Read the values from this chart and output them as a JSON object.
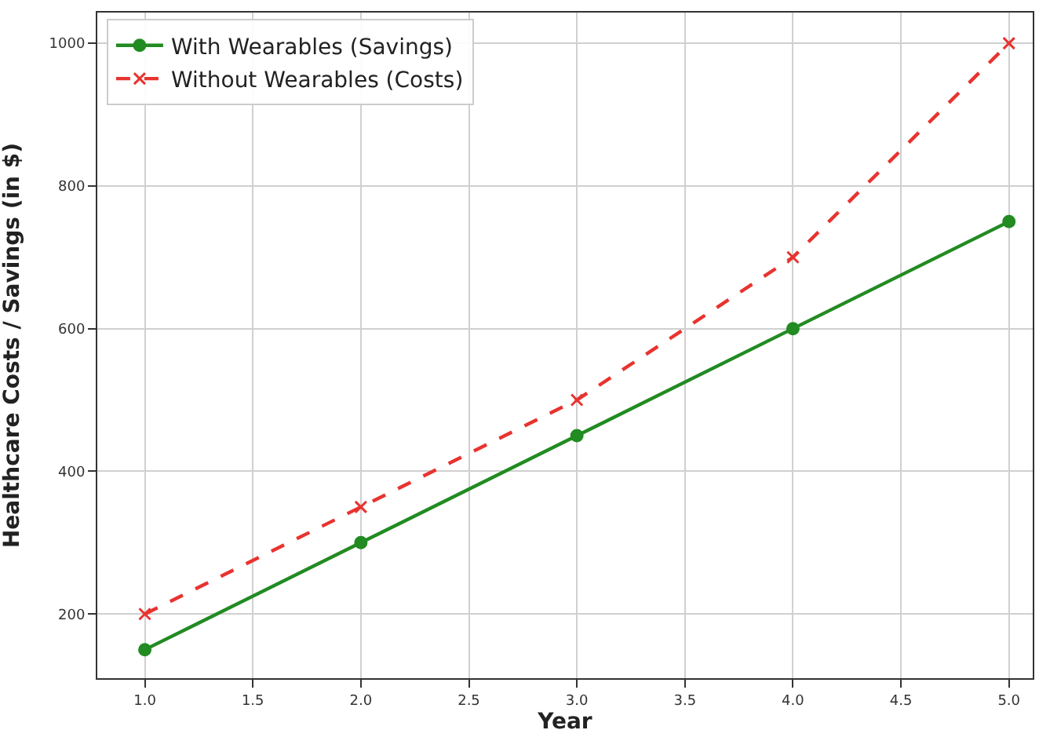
{
  "chart_data": {
    "type": "line",
    "xlabel": "Year",
    "ylabel": "Healthcare Costs / Savings (in $)",
    "x": [
      1.0,
      2.0,
      3.0,
      4.0,
      5.0
    ],
    "series": [
      {
        "name": "With Wearables (Savings)",
        "color": "#228b22",
        "values": [
          150,
          300,
          450,
          600,
          750
        ],
        "marker": "circle",
        "line_style": "solid"
      },
      {
        "name": "Without Wearables (Costs)",
        "color": "#e8332f",
        "values": [
          200,
          350,
          500,
          700,
          1000
        ],
        "marker": "cross",
        "line_style": "dashed"
      }
    ],
    "xlim": [
      0.78,
      5.11
    ],
    "ylim": [
      110,
      1043
    ],
    "xticks": [
      {
        "value": 1.0,
        "label": "1.0"
      },
      {
        "value": 1.5,
        "label": "1.5"
      },
      {
        "value": 2.0,
        "label": "2.0"
      },
      {
        "value": 2.5,
        "label": "2.5"
      },
      {
        "value": 3.0,
        "label": "3.0"
      },
      {
        "value": 3.5,
        "label": "3.5"
      },
      {
        "value": 4.0,
        "label": "4.0"
      },
      {
        "value": 4.5,
        "label": "4.5"
      },
      {
        "value": 5.0,
        "label": "5.0"
      }
    ],
    "yticks": [
      200,
      400,
      600,
      800,
      1000
    ],
    "grid": true,
    "legend": "top left"
  }
}
